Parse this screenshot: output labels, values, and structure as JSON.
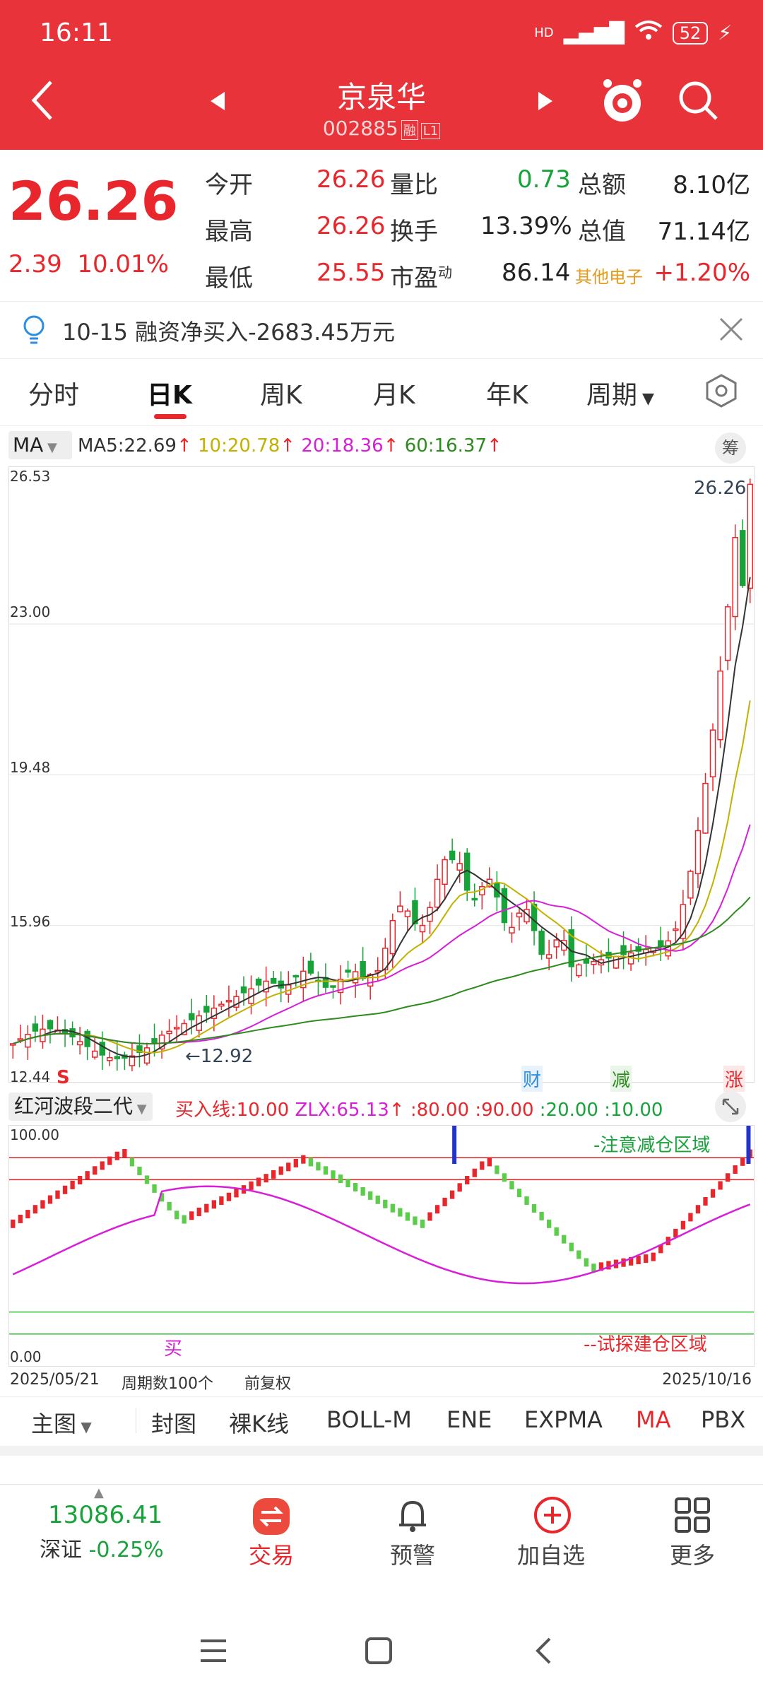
{
  "status": {
    "time": "16:11",
    "network": "HD",
    "battery": "52"
  },
  "header": {
    "title": "京泉华",
    "code": "002885",
    "tag1": "融",
    "tag2": "L1"
  },
  "quote": {
    "price": "26.26",
    "change": "2.39",
    "change_pct": "10.01%",
    "rows": [
      {
        "l1": "今开",
        "v1": "26.26",
        "l2": "量比",
        "v2": "0.73",
        "l3": "总额",
        "v3": "8.10亿"
      },
      {
        "l1": "最高",
        "v1": "26.26",
        "l2": "换手",
        "v2": "13.39%",
        "l3": "总值",
        "v3": "71.14亿"
      },
      {
        "l1": "最低",
        "v1": "25.55",
        "l2": "市盈",
        "l2sup": "动",
        "v2": "86.14",
        "l3": "其他电子",
        "v3": "+1.20%"
      }
    ]
  },
  "notice": {
    "text": "10-15 融资净买入-2683.45万元"
  },
  "tabs": [
    "分时",
    "日K",
    "周K",
    "月K",
    "年K",
    "周期"
  ],
  "ma_legend": {
    "selector": "MA",
    "ma5": "MA5:22.69",
    "ma10": "10:20.78",
    "ma20": "20:18.36",
    "ma60": "60:16.37",
    "chip": "筹"
  },
  "colors": {
    "up": "#e8262b",
    "down": "#18a33a",
    "ma5": "#333333",
    "ma10": "#c3b100",
    "ma20": "#d81ed8",
    "ma60": "#2e8b1e"
  },
  "chart_data": {
    "type": "candlestick",
    "y_ticks": [
      "26.53",
      "23.00",
      "19.48",
      "15.96",
      "12.44"
    ],
    "ylim": [
      12.44,
      26.53
    ],
    "last_price_label": "26.26",
    "low_marker": "12.92",
    "markers": [
      "S",
      "财",
      "减",
      "涨"
    ],
    "start_date": "2025/05/21",
    "end_date": "2025/10/16",
    "period_count": "周期数100个",
    "adjust": "前复权"
  },
  "indicator": {
    "name": "红河波段二代",
    "params": [
      {
        "text": "买入线:10.00",
        "color": "#e8262b"
      },
      {
        "text": "ZLX:65.13",
        "color": "#d81ed8"
      },
      {
        "text": ":80.00",
        "color": "#e8262b"
      },
      {
        "text": ":90.00",
        "color": "#e8262b"
      },
      {
        "text": ":20.00",
        "color": "#18a33a"
      },
      {
        "text": ":10.00",
        "color": "#18a33a"
      }
    ],
    "top": "100.00",
    "bottom": "0.00",
    "reduce_text": "-注意减仓区域",
    "build_text": "--试探建仓区域",
    "buy_marker": "买"
  },
  "indicator_tabs": [
    "主图",
    "封图",
    "裸K线",
    "BOLL-M",
    "ENE",
    "EXPMA",
    "MA",
    "PBX"
  ],
  "index_bar": {
    "value": "13086.41",
    "name": "深证",
    "pct": "-0.25%"
  },
  "bottom_nav": [
    {
      "label": "交易",
      "icon": "trade-icon"
    },
    {
      "label": "预警",
      "icon": "bell-icon"
    },
    {
      "label": "加自选",
      "icon": "add-circle-icon"
    },
    {
      "label": "更多",
      "icon": "grid-icon"
    }
  ]
}
